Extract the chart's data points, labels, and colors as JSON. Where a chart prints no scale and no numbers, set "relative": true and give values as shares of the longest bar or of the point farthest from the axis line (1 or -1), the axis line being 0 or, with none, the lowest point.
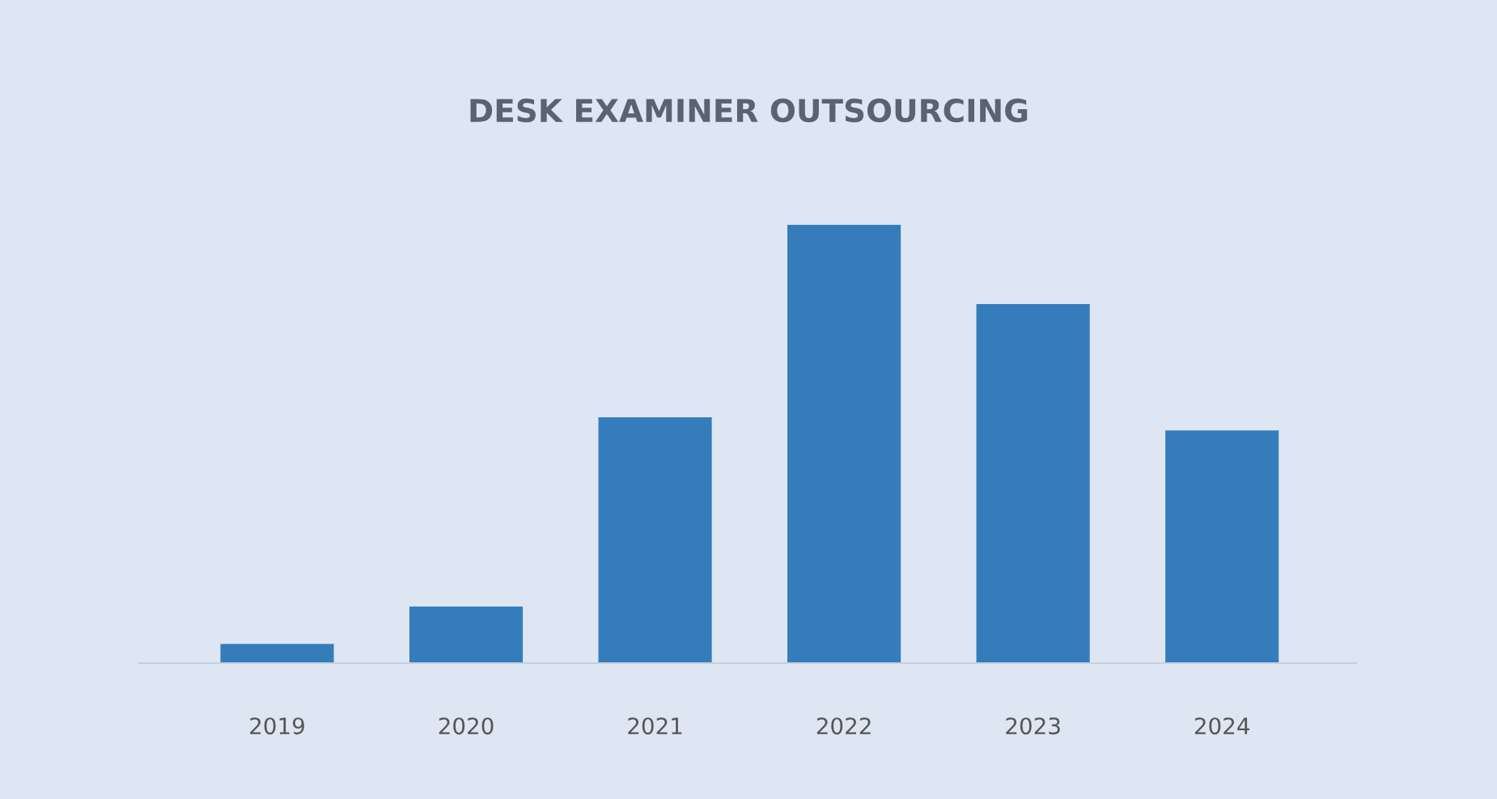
{
  "chart_data": {
    "type": "bar",
    "title": "DESK EXAMINER OUTSOURCING",
    "categories": [
      "2019",
      "2020",
      "2021",
      "2022",
      "2023",
      "2024"
    ],
    "values": [
      0.044,
      0.129,
      0.561,
      1,
      0.819,
      0.531
    ],
    "color": "#357dba",
    "relative": true,
    "grid": false,
    "legend": false
  }
}
